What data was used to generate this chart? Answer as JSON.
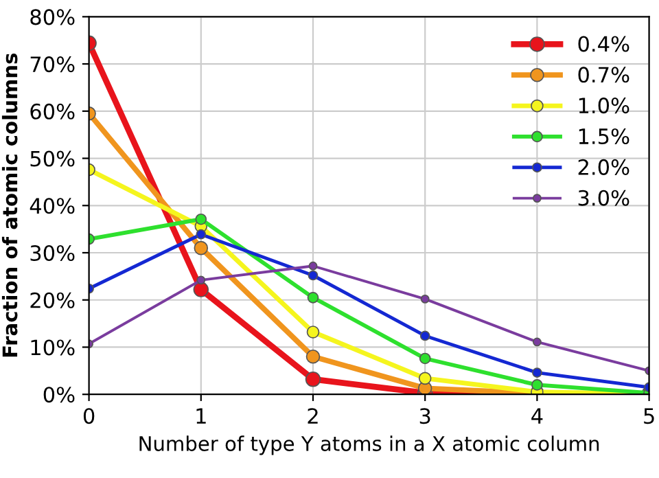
{
  "chart_data": {
    "type": "line",
    "xlabel": "Number of type Y atoms in a X atomic column",
    "ylabel": "Fraction of atomic columns",
    "x": [
      0,
      1,
      2,
      3,
      4,
      5
    ],
    "series": [
      {
        "name": "0.4%",
        "color": "#e8141c",
        "values": [
          74.4,
          22.2,
          3.2,
          0.3,
          0.1,
          0.1
        ]
      },
      {
        "name": "0.7%",
        "color": "#f0951e",
        "values": [
          59.5,
          31.0,
          8.0,
          1.3,
          0.2,
          0.1
        ]
      },
      {
        "name": "1.0%",
        "color": "#f5f51e",
        "values": [
          47.6,
          35.6,
          13.2,
          3.4,
          0.5,
          0.1
        ]
      },
      {
        "name": "1.5%",
        "color": "#2ee02e",
        "values": [
          32.9,
          37.1,
          20.5,
          7.6,
          2.0,
          0.3
        ]
      },
      {
        "name": "2.0%",
        "color": "#1428d2",
        "values": [
          22.4,
          33.9,
          25.2,
          12.4,
          4.6,
          1.5
        ]
      },
      {
        "name": "3.0%",
        "color": "#7a3c9e",
        "values": [
          10.7,
          24.2,
          27.2,
          20.2,
          11.1,
          5.0
        ]
      }
    ],
    "xlim": [
      0,
      5
    ],
    "xticks": [
      0,
      1,
      2,
      3,
      4,
      5
    ],
    "ylim": [
      0,
      80
    ],
    "yticks": [
      {
        "value": 0,
        "label": "0%"
      },
      {
        "value": 10,
        "label": "10%"
      },
      {
        "value": 20,
        "label": "20%"
      },
      {
        "value": 30,
        "label": "30%"
      },
      {
        "value": 40,
        "label": "40%"
      },
      {
        "value": 50,
        "label": "50%"
      },
      {
        "value": 60,
        "label": "60%"
      },
      {
        "value": 70,
        "label": "70%"
      },
      {
        "value": 80,
        "label": "80%"
      }
    ],
    "grid": true,
    "legend": "top right",
    "marker": "circle",
    "line_style": "solid"
  }
}
